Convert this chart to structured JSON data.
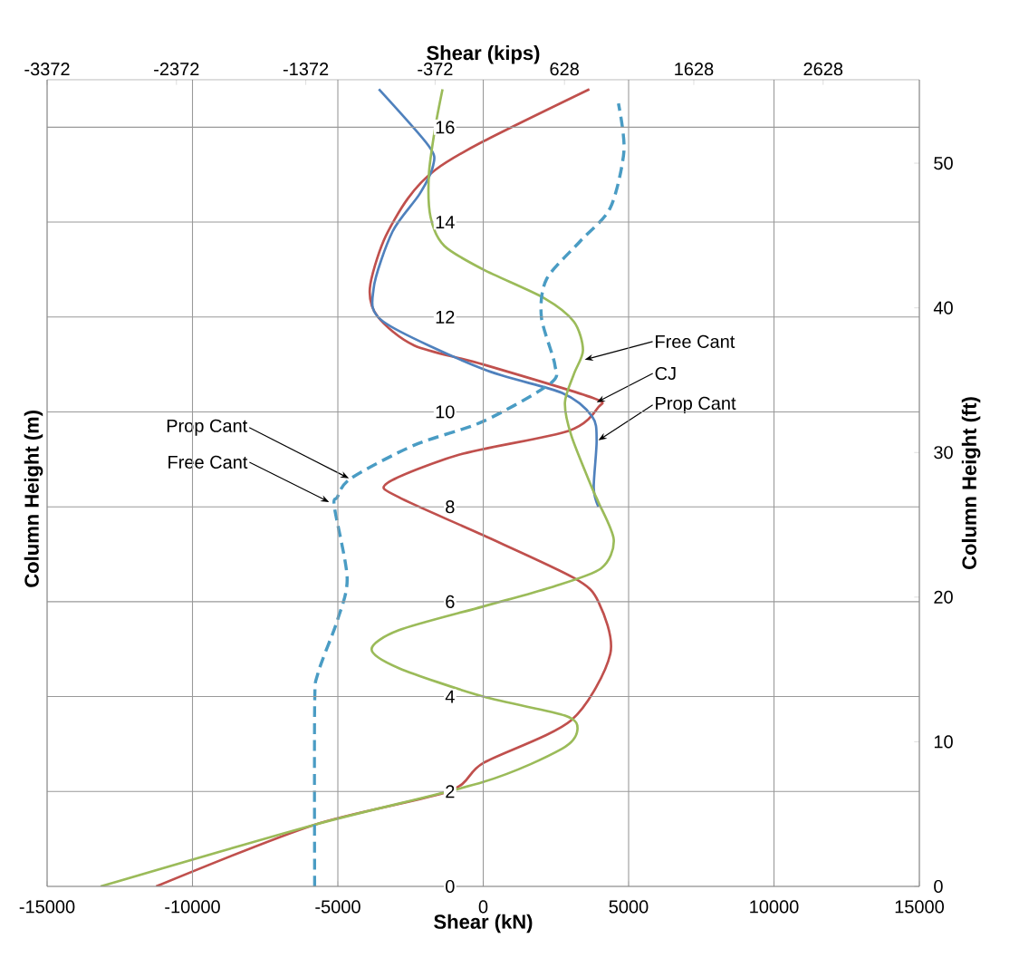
{
  "chart_data": {
    "type": "line",
    "xlabel": "Shear (kN)",
    "x2label": "Shear (kips)",
    "ylabel": "Column Height (m)",
    "y2label": "Column Height (ft)",
    "xlim": [
      -15000,
      15000
    ],
    "xticks": [
      -15000,
      -10000,
      -5000,
      0,
      5000,
      10000,
      15000
    ],
    "x2lim": [
      -3372,
      3372
    ],
    "x2ticks": [
      -3372,
      -2372,
      -1372,
      -372,
      628,
      1628,
      2628
    ],
    "ylim": [
      0,
      17
    ],
    "yticks": [
      0,
      2,
      4,
      6,
      8,
      10,
      12,
      14,
      16
    ],
    "y2lim": [
      0,
      55.77
    ],
    "y2ticks": [
      0,
      10,
      20,
      30,
      40,
      50
    ],
    "grid": true,
    "series": [
      {
        "color": "#c0504d",
        "line_style": "solid",
        "x": [
          -11250,
          -5800,
          -1200,
          0,
          3025,
          4370,
          3960,
          3120,
          0,
          -2900,
          -3300,
          -810,
          2930,
          3960,
          3750,
          0,
          -2370,
          -3620,
          -3900,
          -3430,
          -2590,
          -1650,
          0,
          3650
        ],
        "values": [
          0,
          1.3,
          2,
          2.6,
          3.5,
          4.9,
          6,
          6.5,
          7.4,
          8.2,
          8.5,
          9.1,
          9.6,
          10.1,
          10.3,
          11,
          11.4,
          12,
          12.6,
          13.6,
          14.5,
          15.1,
          15.7,
          16.8
        ]
      },
      {
        "color": "#4f81bd",
        "line_style": "solid",
        "x": [
          3960,
          3800,
          3900,
          3750,
          2710,
          0,
          -3430,
          -3770,
          -3120,
          -2180,
          -1720,
          -1870,
          -3590
        ],
        "values": [
          8,
          8.4,
          9.4,
          9.9,
          10.4,
          10.9,
          11.9,
          12.6,
          13.8,
          14.6,
          15.2,
          15.6,
          16.8
        ]
      },
      {
        "color": "#9bbb59",
        "line_style": "solid",
        "x": [
          -13160,
          -5800,
          0,
          2710,
          3240,
          2810,
          0,
          -2900,
          -3840,
          -2900,
          0,
          2310,
          4050,
          4490,
          3960,
          3740,
          3030,
          2810,
          3120,
          3430,
          3120,
          2090,
          0,
          -1340,
          -1810,
          -1870,
          -1650,
          -1400
        ],
        "values": [
          0,
          1.3,
          2.2,
          2.9,
          3.3,
          3.6,
          4,
          4.6,
          5,
          5.4,
          5.9,
          6.3,
          6.7,
          7.3,
          8.1,
          8.4,
          9.5,
          10.2,
          10.8,
          11.3,
          11.9,
          12.4,
          13,
          13.5,
          14.1,
          15,
          16,
          16.8
        ]
      },
      {
        "color": "#4a9cc4",
        "line_style": "dashed",
        "x": [
          -5800,
          -5800,
          -5680,
          -5020,
          -4680,
          -5120,
          -5020,
          -4550,
          -2370,
          0,
          2310,
          2460,
          2000,
          2180,
          3340,
          4370,
          4840,
          4650
        ],
        "values": [
          0,
          3.8,
          4.5,
          5.6,
          6.5,
          8,
          8.2,
          8.6,
          9.3,
          9.8,
          10.6,
          11,
          12,
          12.8,
          13.6,
          14.3,
          15.5,
          16.5
        ]
      }
    ],
    "annotations": [
      {
        "text": "Free Cant",
        "x": 3490,
        "y": 11.1
      },
      {
        "text": "CJ",
        "x": 3900,
        "y": 10.2
      },
      {
        "text": "Prop Cant",
        "x": 3960,
        "y": 9.4
      },
      {
        "text": "Prop Cant",
        "x": -4620,
        "y": 8.6
      },
      {
        "text": "Free Cant",
        "x": -5300,
        "y": 8.1
      }
    ]
  }
}
